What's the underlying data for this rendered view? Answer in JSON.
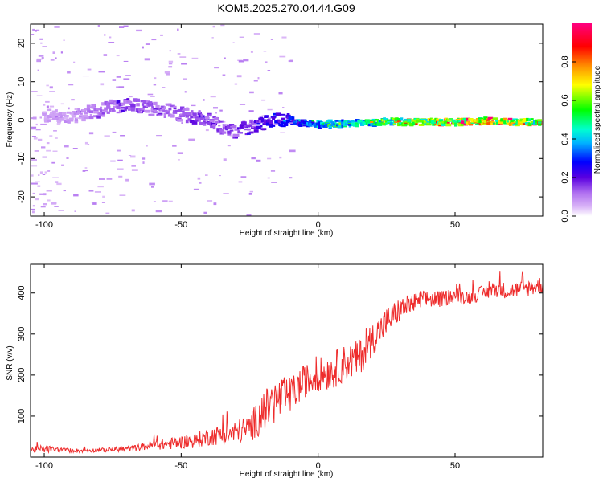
{
  "title": "KOM5.2025.270.04.44.G09",
  "chart_data": [
    {
      "type": "heatmap",
      "xlabel": "Height of straight line (km)",
      "ylabel": "Frequency (Hz)",
      "xlim": [
        -105,
        82
      ],
      "ylim": [
        -25,
        25
      ],
      "xticks": [
        -100,
        -50,
        0,
        50
      ],
      "yticks": [
        20,
        10,
        0,
        -10,
        -20
      ],
      "colorbar": {
        "label": "Normalized spectral amplitude",
        "range": [
          0,
          1
        ],
        "ticks": [
          0.0,
          0.2,
          0.4,
          0.6,
          0.8
        ]
      },
      "ridge": {
        "x": [
          -90,
          -80,
          -75,
          -70,
          -65,
          -60,
          -55,
          -50,
          -45,
          -40,
          -35,
          -30,
          -25,
          -20,
          -15,
          -10,
          -5,
          0,
          10,
          20,
          30,
          40,
          50,
          60,
          70,
          80
        ],
        "freq": [
          1,
          2.5,
          3.5,
          4,
          3.5,
          3,
          2.5,
          1.5,
          1,
          0,
          -2,
          -3,
          -2,
          -1,
          0,
          0,
          -1,
          -1,
          -1,
          -0.5,
          -0.5,
          -0.5,
          -0.5,
          -0.3,
          -0.5,
          -0.5
        ],
        "amplitude": [
          0.1,
          0.15,
          0.2,
          0.2,
          0.18,
          0.18,
          0.17,
          0.18,
          0.2,
          0.2,
          0.2,
          0.22,
          0.25,
          0.28,
          0.35,
          0.35,
          0.45,
          0.5,
          0.55,
          0.65,
          0.75,
          0.8,
          0.85,
          0.95,
          0.9,
          0.75
        ]
      }
    },
    {
      "type": "line",
      "xlabel": "Height of straight line (km)",
      "ylabel": "SNR (v/v)",
      "xlim": [
        -105,
        82
      ],
      "ylim": [
        0,
        470
      ],
      "xticks": [
        -100,
        -50,
        0,
        50
      ],
      "yticks": [
        100,
        200,
        300,
        400
      ],
      "series": [
        {
          "name": "SNR",
          "color": "#ee2b2b",
          "x": [
            -105,
            -100,
            -95,
            -90,
            -85,
            -80,
            -75,
            -70,
            -65,
            -60,
            -55,
            -50,
            -45,
            -40,
            -35,
            -30,
            -25,
            -20,
            -15,
            -10,
            -5,
            0,
            5,
            10,
            15,
            20,
            25,
            30,
            35,
            40,
            45,
            50,
            55,
            60,
            65,
            70,
            75,
            82
          ],
          "values": [
            18,
            20,
            18,
            16,
            16,
            17,
            18,
            20,
            24,
            30,
            32,
            36,
            40,
            50,
            55,
            60,
            70,
            110,
            140,
            150,
            185,
            200,
            210,
            230,
            240,
            290,
            330,
            360,
            375,
            385,
            385,
            395,
            390,
            400,
            410,
            405,
            410,
            420
          ],
          "noise": [
            6,
            10,
            6,
            5,
            5,
            5,
            6,
            6,
            8,
            12,
            14,
            16,
            18,
            22,
            25,
            30,
            35,
            50,
            55,
            45,
            40,
            40,
            45,
            45,
            45,
            40,
            35,
            30,
            25,
            22,
            20,
            18,
            18,
            18,
            20,
            20,
            20,
            22
          ]
        }
      ]
    }
  ]
}
